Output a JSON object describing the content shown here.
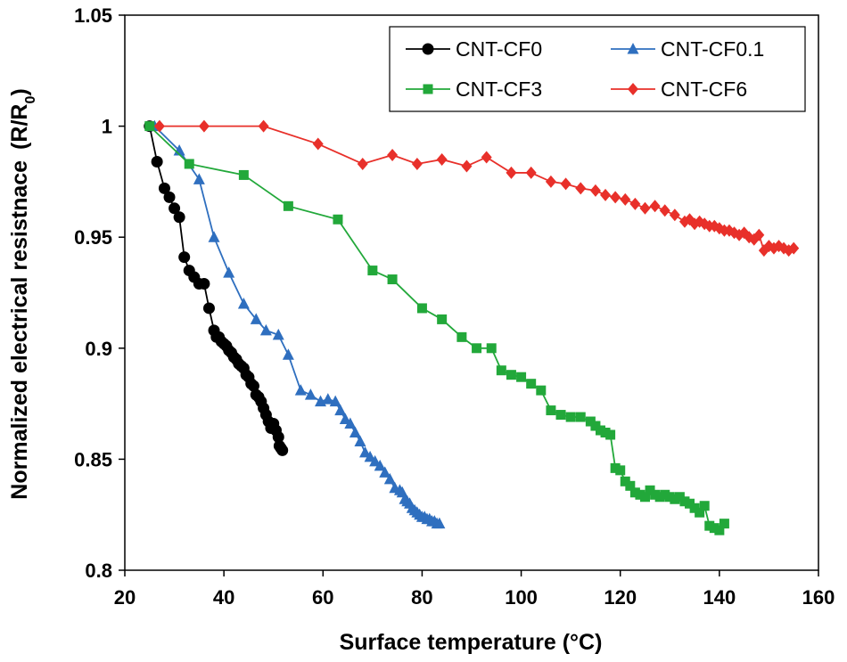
{
  "chart_data": {
    "type": "line",
    "title": "",
    "xlabel": "Surface temperature (°C)",
    "ylabel": "Normalized  electrical resistnace",
    "ylabel_suffix": "(R/R",
    "ylabel_sub": "0",
    "ylabel_close": ")",
    "xlim": [
      20,
      160
    ],
    "ylim": [
      0.8,
      1.05
    ],
    "xticks": [
      20,
      40,
      60,
      80,
      100,
      120,
      140,
      160
    ],
    "yticks": [
      0.8,
      0.85,
      0.9,
      0.95,
      1,
      1.05
    ],
    "xtick_labels": [
      "20",
      "40",
      "60",
      "80",
      "100",
      "120",
      "140",
      "160"
    ],
    "ytick_labels": [
      "0.8",
      "0.85",
      "0.9",
      "0.95",
      "1",
      "1.05"
    ],
    "grid": false,
    "legend_position": "top-right",
    "series": [
      {
        "name": "CNT-CF0",
        "color": "#000000",
        "marker": "circle",
        "x": [
          25,
          26.5,
          28,
          29,
          30,
          31,
          32,
          33,
          34,
          35,
          36,
          37,
          38,
          38.5,
          39,
          39.5,
          40,
          40.5,
          41,
          41.5,
          42,
          42.5,
          43,
          43.5,
          44,
          44.5,
          45,
          45.5,
          46,
          46.5,
          47,
          47.5,
          48,
          48.5,
          49,
          49.5,
          50,
          50.5,
          51,
          51.2,
          51.5,
          51.8
        ],
        "y": [
          1.0,
          0.984,
          0.972,
          0.968,
          0.963,
          0.959,
          0.941,
          0.935,
          0.932,
          0.929,
          0.929,
          0.918,
          0.908,
          0.905,
          0.905,
          0.903,
          0.902,
          0.901,
          0.899,
          0.898,
          0.896,
          0.895,
          0.893,
          0.892,
          0.891,
          0.888,
          0.887,
          0.884,
          0.883,
          0.879,
          0.878,
          0.876,
          0.873,
          0.87,
          0.867,
          0.864,
          0.866,
          0.863,
          0.86,
          0.856,
          0.855,
          0.854
        ]
      },
      {
        "name": "CNT-CF0.1",
        "color": "#2f6fbf",
        "marker": "triangle",
        "x": [
          26,
          31,
          35,
          38,
          41,
          44,
          46.5,
          48.5,
          51,
          53,
          55.5,
          57.5,
          59.5,
          61,
          62.5,
          63.5,
          64.5,
          65.5,
          66.5,
          67.5,
          68.5,
          69.5,
          70.5,
          71.5,
          72.5,
          73.5,
          74.5,
          75.5,
          76,
          76.5,
          77,
          77.5,
          78,
          78.5,
          79,
          79.5,
          80,
          80.5,
          81,
          81.5,
          82,
          82.5,
          83,
          83.5
        ],
        "y": [
          1.0,
          0.989,
          0.976,
          0.95,
          0.934,
          0.92,
          0.913,
          0.908,
          0.906,
          0.897,
          0.881,
          0.879,
          0.876,
          0.877,
          0.876,
          0.872,
          0.868,
          0.866,
          0.862,
          0.858,
          0.853,
          0.851,
          0.849,
          0.847,
          0.844,
          0.841,
          0.837,
          0.836,
          0.835,
          0.832,
          0.831,
          0.83,
          0.828,
          0.827,
          0.826,
          0.825,
          0.824,
          0.824,
          0.823,
          0.823,
          0.822,
          0.822,
          0.821,
          0.821
        ]
      },
      {
        "name": "CNT-CF3",
        "color": "#22a83a",
        "marker": "square",
        "x": [
          25,
          33,
          44,
          53,
          63,
          70,
          74,
          80,
          84,
          88,
          91,
          94,
          96,
          98,
          100,
          102,
          104,
          106,
          108,
          110,
          112,
          114,
          115,
          116,
          117,
          118,
          119,
          120,
          121,
          122,
          123,
          124,
          125,
          126,
          127,
          128,
          129,
          130,
          131,
          132,
          133,
          134,
          135,
          136,
          137,
          138,
          139,
          140,
          141
        ],
        "y": [
          1.0,
          0.983,
          0.978,
          0.964,
          0.958,
          0.935,
          0.931,
          0.918,
          0.913,
          0.905,
          0.9,
          0.9,
          0.89,
          0.888,
          0.887,
          0.884,
          0.881,
          0.872,
          0.87,
          0.869,
          0.869,
          0.867,
          0.865,
          0.863,
          0.862,
          0.861,
          0.846,
          0.845,
          0.84,
          0.838,
          0.835,
          0.834,
          0.833,
          0.836,
          0.834,
          0.833,
          0.834,
          0.833,
          0.832,
          0.833,
          0.831,
          0.83,
          0.828,
          0.826,
          0.829,
          0.82,
          0.819,
          0.818,
          0.821
        ]
      },
      {
        "name": "CNT-CF6",
        "color": "#e8302a",
        "marker": "diamond",
        "x": [
          27,
          36,
          48,
          59,
          68,
          74,
          79,
          84,
          89,
          93,
          98,
          102,
          106,
          109,
          112,
          115,
          117,
          119,
          121,
          123,
          125,
          127,
          129,
          131,
          133,
          134,
          135,
          136,
          137,
          138,
          139,
          140,
          141,
          142,
          143,
          144,
          145,
          146,
          147,
          148,
          149,
          150,
          151,
          152,
          153,
          154,
          155
        ],
        "y": [
          1.0,
          1.0,
          1.0,
          0.992,
          0.983,
          0.987,
          0.983,
          0.985,
          0.982,
          0.986,
          0.979,
          0.979,
          0.975,
          0.974,
          0.972,
          0.971,
          0.969,
          0.968,
          0.967,
          0.965,
          0.963,
          0.964,
          0.962,
          0.96,
          0.957,
          0.958,
          0.956,
          0.957,
          0.956,
          0.955,
          0.955,
          0.954,
          0.953,
          0.953,
          0.952,
          0.951,
          0.952,
          0.95,
          0.949,
          0.951,
          0.944,
          0.946,
          0.945,
          0.946,
          0.945,
          0.944,
          0.945
        ]
      }
    ]
  }
}
